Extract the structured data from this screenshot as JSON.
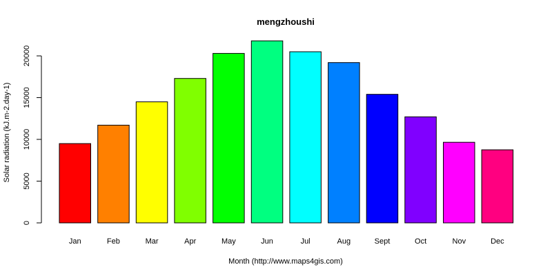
{
  "chart_data": {
    "type": "bar",
    "title": "mengzhoushi",
    "xlabel": "Month (http://www.maps4gis.com)",
    "ylabel": "Solar radiation (kJ.m-2.day-1)",
    "categories": [
      "Jan",
      "Feb",
      "Mar",
      "Apr",
      "May",
      "Jun",
      "Jul",
      "Aug",
      "Sept",
      "Oct",
      "Nov",
      "Dec"
    ],
    "values": [
      9500,
      11700,
      14500,
      17300,
      20300,
      21800,
      20500,
      19200,
      15400,
      12700,
      9650,
      8750
    ],
    "colors": [
      "#FF0000",
      "#FF8000",
      "#FFFF00",
      "#80FF00",
      "#00FF00",
      "#00FF80",
      "#00FFFF",
      "#0080FF",
      "#0000FF",
      "#8000FF",
      "#FF00FF",
      "#FF0080"
    ],
    "yticks": [
      0,
      5000,
      10000,
      15000,
      20000
    ],
    "ylim": [
      0,
      21800
    ],
    "grid": false,
    "legend": "none"
  }
}
